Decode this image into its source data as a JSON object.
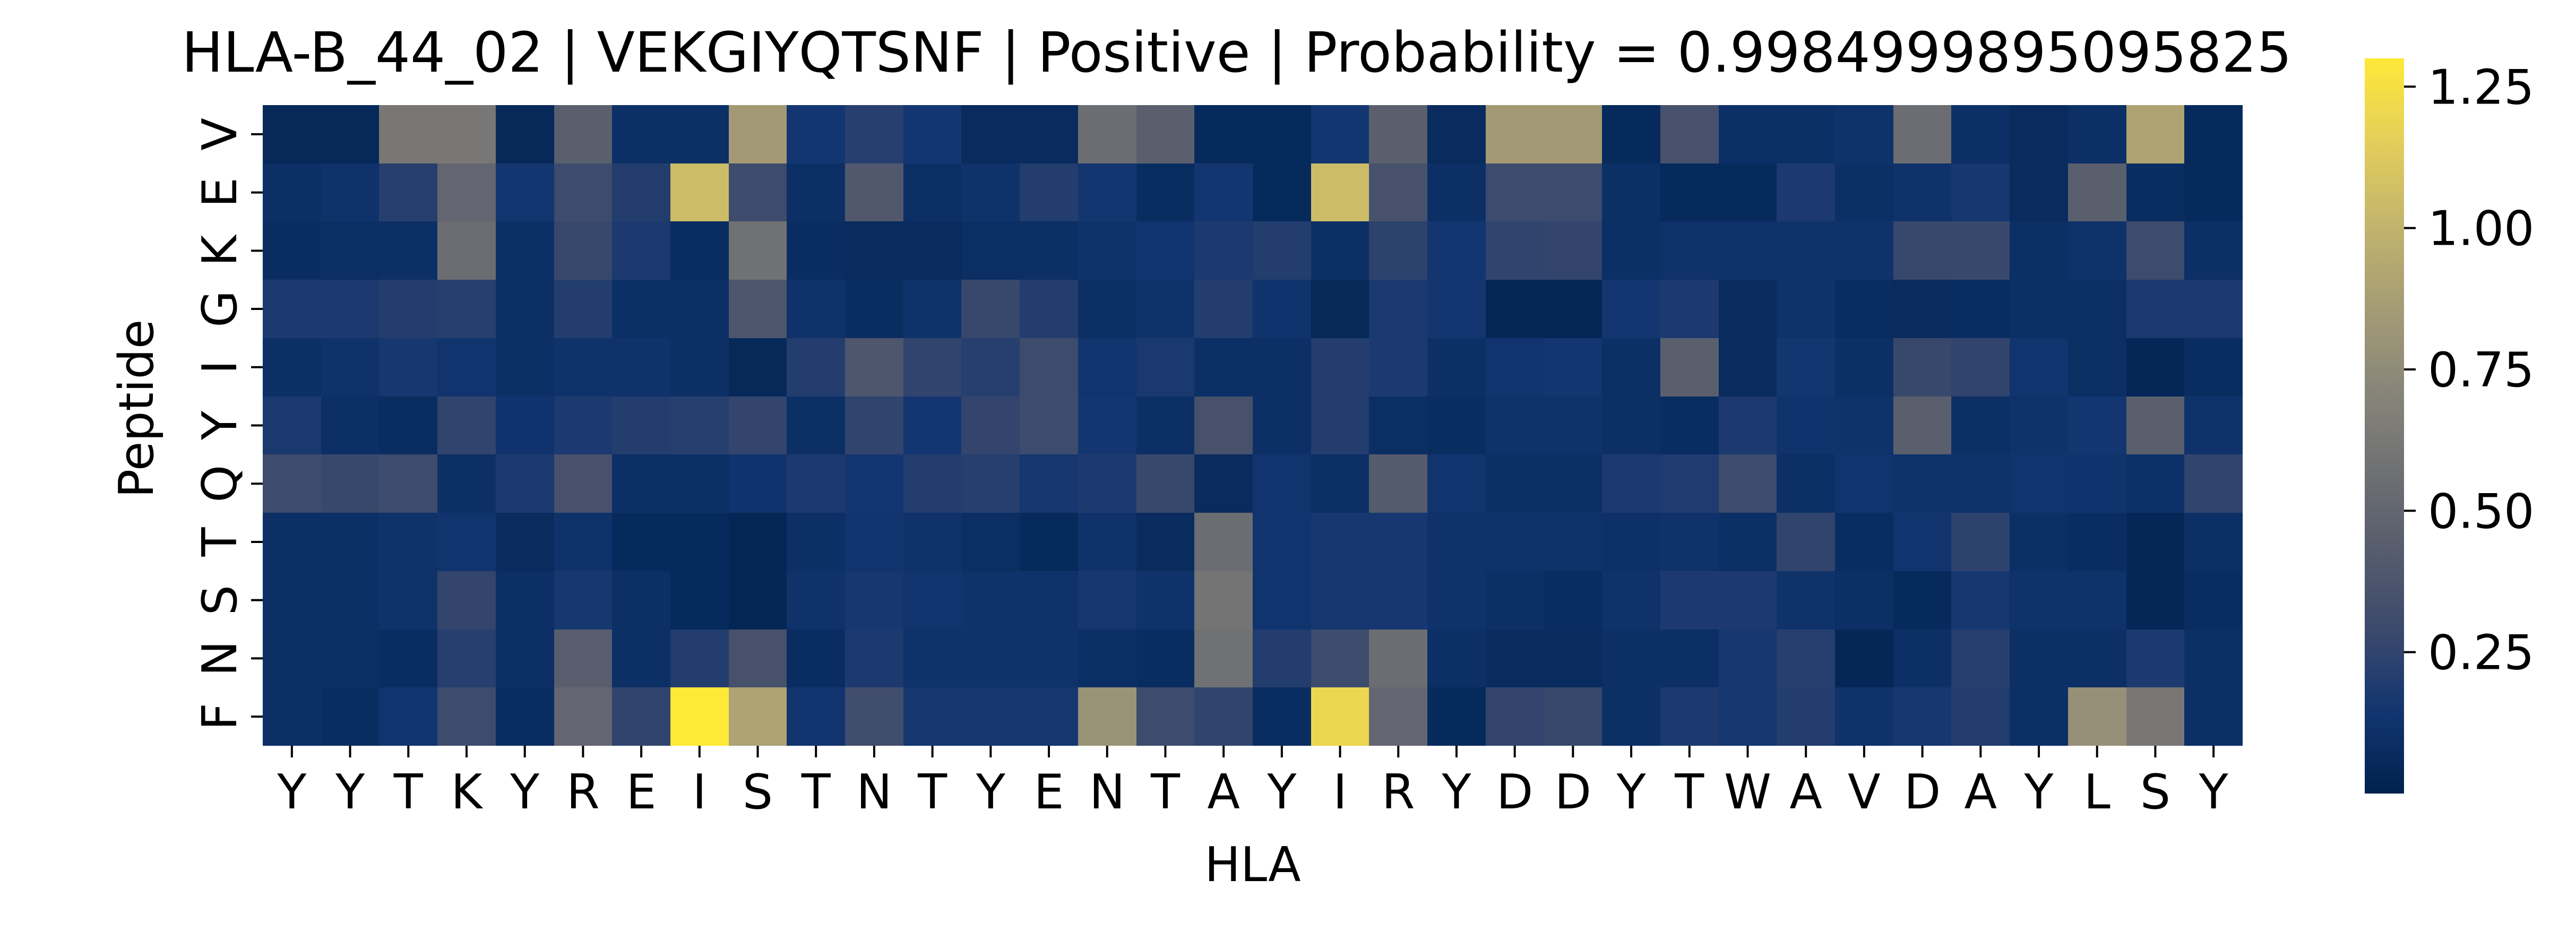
{
  "chart_data": {
    "type": "heatmap",
    "title": "HLA-B_44_02 | VEKGIYQTSNF | Positive | Probability = 0.9984999895095825",
    "xlabel": "HLA",
    "ylabel": "Peptide",
    "x_ticks": [
      "Y",
      "Y",
      "T",
      "K",
      "Y",
      "R",
      "E",
      "I",
      "S",
      "T",
      "N",
      "T",
      "Y",
      "E",
      "N",
      "T",
      "A",
      "Y",
      "I",
      "R",
      "Y",
      "D",
      "D",
      "Y",
      "T",
      "W",
      "A",
      "V",
      "D",
      "A",
      "Y",
      "L",
      "S",
      "Y"
    ],
    "y_ticks": [
      "V",
      "E",
      "K",
      "G",
      "I",
      "Y",
      "Q",
      "T",
      "S",
      "N",
      "F"
    ],
    "colormap": "cividis",
    "colors": [
      "#00224e",
      "#123570",
      "#3b496c",
      "#575d6d",
      "#707173",
      "#8a8779",
      "#a69d75",
      "#c4b56c",
      "#e4cf5b",
      "#fee838"
    ],
    "colorbar": {
      "vmin": 0.0,
      "vmax": 1.3,
      "ticks": [
        0.25,
        0.5,
        0.75,
        1.0,
        1.25
      ],
      "tick_labels": [
        "0.25",
        "0.50",
        "0.75",
        "1.00",
        "1.25"
      ]
    },
    "values": [
      [
        0.05,
        0.05,
        0.62,
        0.62,
        0.05,
        0.45,
        0.1,
        0.1,
        0.85,
        0.15,
        0.22,
        0.15,
        0.07,
        0.07,
        0.55,
        0.45,
        0.06,
        0.06,
        0.15,
        0.45,
        0.07,
        0.85,
        0.85,
        0.06,
        0.35,
        0.1,
        0.1,
        0.12,
        0.55,
        0.1,
        0.07,
        0.1,
        0.9,
        0.06
      ],
      [
        0.1,
        0.12,
        0.22,
        0.5,
        0.15,
        0.3,
        0.2,
        1.05,
        0.3,
        0.1,
        0.4,
        0.1,
        0.12,
        0.2,
        0.15,
        0.08,
        0.15,
        0.06,
        1.05,
        0.35,
        0.1,
        0.3,
        0.3,
        0.1,
        0.06,
        0.06,
        0.18,
        0.1,
        0.12,
        0.16,
        0.07,
        0.45,
        0.08,
        0.06
      ],
      [
        0.08,
        0.09,
        0.1,
        0.55,
        0.1,
        0.28,
        0.18,
        0.08,
        0.58,
        0.08,
        0.07,
        0.07,
        0.09,
        0.1,
        0.12,
        0.14,
        0.18,
        0.2,
        0.1,
        0.24,
        0.15,
        0.25,
        0.26,
        0.1,
        0.12,
        0.12,
        0.12,
        0.12,
        0.28,
        0.28,
        0.1,
        0.12,
        0.3,
        0.1
      ],
      [
        0.18,
        0.18,
        0.2,
        0.22,
        0.1,
        0.2,
        0.1,
        0.1,
        0.38,
        0.12,
        0.08,
        0.12,
        0.28,
        0.2,
        0.1,
        0.12,
        0.2,
        0.13,
        0.05,
        0.17,
        0.15,
        0.03,
        0.04,
        0.15,
        0.18,
        0.07,
        0.12,
        0.08,
        0.07,
        0.08,
        0.1,
        0.09,
        0.18,
        0.18
      ],
      [
        0.1,
        0.12,
        0.16,
        0.14,
        0.1,
        0.12,
        0.12,
        0.1,
        0.05,
        0.2,
        0.38,
        0.25,
        0.22,
        0.3,
        0.14,
        0.17,
        0.1,
        0.1,
        0.2,
        0.18,
        0.1,
        0.14,
        0.15,
        0.1,
        0.45,
        0.07,
        0.15,
        0.1,
        0.28,
        0.25,
        0.14,
        0.09,
        0.04,
        0.08
      ],
      [
        0.17,
        0.1,
        0.08,
        0.25,
        0.13,
        0.18,
        0.2,
        0.22,
        0.26,
        0.1,
        0.25,
        0.15,
        0.26,
        0.3,
        0.15,
        0.1,
        0.35,
        0.1,
        0.2,
        0.09,
        0.08,
        0.12,
        0.12,
        0.1,
        0.08,
        0.18,
        0.13,
        0.12,
        0.45,
        0.1,
        0.12,
        0.15,
        0.45,
        0.12
      ],
      [
        0.3,
        0.28,
        0.3,
        0.1,
        0.18,
        0.35,
        0.1,
        0.1,
        0.13,
        0.18,
        0.15,
        0.2,
        0.22,
        0.16,
        0.18,
        0.28,
        0.07,
        0.14,
        0.1,
        0.42,
        0.14,
        0.1,
        0.1,
        0.18,
        0.19,
        0.3,
        0.1,
        0.14,
        0.12,
        0.12,
        0.14,
        0.13,
        0.11,
        0.25
      ],
      [
        0.1,
        0.1,
        0.12,
        0.14,
        0.07,
        0.12,
        0.06,
        0.06,
        0.03,
        0.1,
        0.14,
        0.12,
        0.09,
        0.06,
        0.12,
        0.07,
        0.55,
        0.14,
        0.16,
        0.16,
        0.12,
        0.12,
        0.12,
        0.11,
        0.12,
        0.1,
        0.25,
        0.08,
        0.14,
        0.24,
        0.1,
        0.08,
        0.04,
        0.1
      ],
      [
        0.1,
        0.1,
        0.12,
        0.26,
        0.1,
        0.16,
        0.1,
        0.06,
        0.03,
        0.12,
        0.16,
        0.14,
        0.12,
        0.12,
        0.16,
        0.12,
        0.6,
        0.14,
        0.16,
        0.16,
        0.12,
        0.1,
        0.08,
        0.12,
        0.18,
        0.18,
        0.12,
        0.1,
        0.06,
        0.16,
        0.12,
        0.12,
        0.04,
        0.08
      ],
      [
        0.09,
        0.09,
        0.08,
        0.22,
        0.1,
        0.44,
        0.1,
        0.2,
        0.35,
        0.08,
        0.18,
        0.12,
        0.12,
        0.12,
        0.1,
        0.08,
        0.58,
        0.2,
        0.3,
        0.55,
        0.1,
        0.07,
        0.07,
        0.1,
        0.1,
        0.16,
        0.22,
        0.04,
        0.1,
        0.22,
        0.1,
        0.1,
        0.18,
        0.1
      ],
      [
        0.1,
        0.08,
        0.14,
        0.3,
        0.08,
        0.5,
        0.25,
        1.3,
        0.9,
        0.14,
        0.32,
        0.16,
        0.16,
        0.16,
        0.8,
        0.3,
        0.25,
        0.08,
        1.2,
        0.5,
        0.06,
        0.26,
        0.28,
        0.1,
        0.18,
        0.16,
        0.2,
        0.12,
        0.16,
        0.2,
        0.1,
        0.78,
        0.62,
        0.1
      ]
    ]
  }
}
